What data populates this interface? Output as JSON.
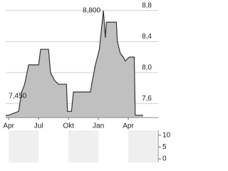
{
  "chart_data": [
    {
      "type": "area",
      "x": [
        -0.3,
        0,
        1,
        1.3,
        1.6,
        2,
        3,
        3.2,
        4,
        4.2,
        4.6,
        5,
        5.8,
        5.9,
        6.3,
        6.5,
        8.2,
        8.4,
        8.7,
        8.9,
        9.1,
        9.5,
        9.7,
        9.8,
        10.8,
        10.9,
        11.2,
        11.5,
        11.7,
        12.1,
        12.6,
        12.7,
        13.5
      ],
      "values": [
        7.45,
        7.45,
        7.5,
        7.75,
        7.85,
        8.1,
        8.1,
        8.3,
        8.3,
        8.0,
        7.9,
        7.85,
        7.85,
        7.5,
        7.5,
        7.75,
        7.75,
        7.9,
        8.1,
        8.2,
        8.3,
        8.8,
        8.45,
        8.65,
        8.65,
        8.4,
        8.25,
        8.2,
        8.15,
        8.2,
        8.2,
        7.45,
        7.45
      ],
      "color": "#c0c0c0",
      "line_color": "#333333",
      "xlim": [
        -0.3,
        15
      ],
      "ylim": [
        7.42,
        8.89
      ],
      "xticks": [
        {
          "value": 0,
          "label": "Apr"
        },
        {
          "value": 3,
          "label": "Jul"
        },
        {
          "value": 6,
          "label": "Okt"
        },
        {
          "value": 9,
          "label": "Jan"
        },
        {
          "value": 12,
          "label": "Apr"
        }
      ],
      "yticks": [
        {
          "value": 7.6,
          "label": "7,6"
        },
        {
          "value": 8.0,
          "label": "8,0"
        },
        {
          "value": 8.4,
          "label": "8,4"
        },
        {
          "value": 8.8,
          "label": "8,8"
        }
      ],
      "grid": true,
      "annotations": [
        {
          "x": 9.5,
          "value": 8.8,
          "label": "8,800"
        },
        {
          "x": 0,
          "value": 7.45,
          "label": "7,450"
        }
      ]
    },
    {
      "type": "bar",
      "values": [],
      "xlim": [
        -0.3,
        15
      ],
      "ylim": [
        -1.5,
        12
      ],
      "yticks": [
        {
          "value": 10,
          "label": "10"
        },
        {
          "value": 5,
          "label": "5"
        },
        {
          "value": 0,
          "label": "0"
        }
      ]
    }
  ]
}
